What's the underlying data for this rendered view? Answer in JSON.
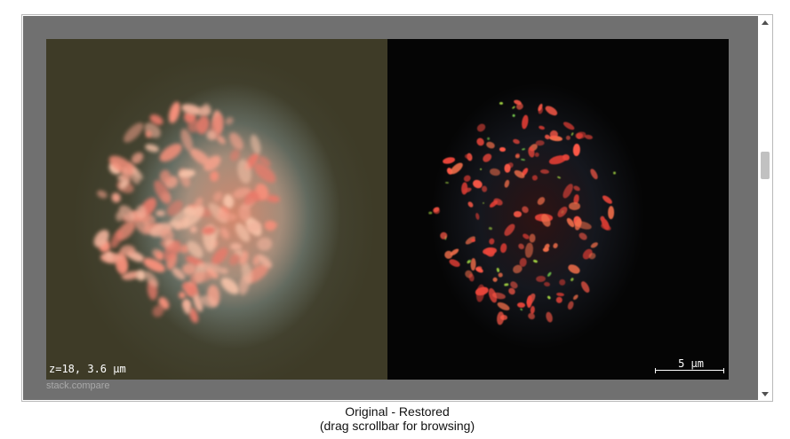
{
  "viewer": {
    "left_panel_name": "Original",
    "right_panel_name": "Restored",
    "z_label": "z=18, 3.6 µm",
    "scale_label": "5 µm",
    "watermark": "stack.compare"
  },
  "caption": {
    "line1": "Original - Restored",
    "line2": "(drag scrollbar for browsing)"
  },
  "scrollbar": {
    "position": 0.37
  },
  "colors": {
    "frame_background": "#707070",
    "left_background": "#3e3b27",
    "right_background": "#050505",
    "spot_red": "#e8453a",
    "spot_salmon": "#f0a08a",
    "spot_green": "#6fbf4a"
  },
  "icons": {
    "scroll_up": "arrow-up-icon",
    "scroll_down": "arrow-down-icon"
  }
}
